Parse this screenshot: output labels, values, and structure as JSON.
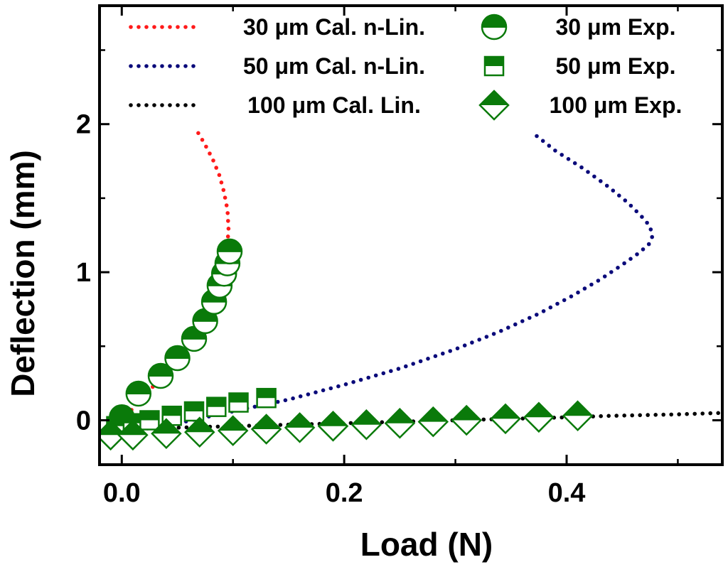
{
  "chart_data": {
    "type": "scatter",
    "xlabel": "Load (N)",
    "ylabel": "Deflection (mm)",
    "xlim": [
      -0.02,
      0.54
    ],
    "ylim": [
      -0.3,
      2.8
    ],
    "xticks": [
      0.0,
      0.2,
      0.4
    ],
    "xtick_labels": [
      "0.0",
      "0.2",
      "0.4"
    ],
    "yticks": [
      0,
      1,
      2
    ],
    "ytick_labels": [
      "0",
      "1",
      "2"
    ],
    "grid": false,
    "legend_position": "top",
    "colors": {
      "red": "#ff1a1a",
      "navy": "#0a0a7a",
      "black": "#000000",
      "green": "#0a7a0a"
    },
    "series": [
      {
        "name": "30 μm Cal. n-Lin.",
        "style": "dotted-line",
        "color": "#ff1a1a",
        "x": [
          -0.005,
          0.005,
          0.015,
          0.025,
          0.035,
          0.045,
          0.055,
          0.065,
          0.075,
          0.083,
          0.089,
          0.093,
          0.095,
          0.096,
          0.095,
          0.092,
          0.088,
          0.082,
          0.075,
          0.068
        ],
        "y": [
          -0.05,
          0.04,
          0.12,
          0.2,
          0.29,
          0.38,
          0.48,
          0.59,
          0.7,
          0.82,
          0.94,
          1.06,
          1.18,
          1.3,
          1.42,
          1.54,
          1.65,
          1.76,
          1.86,
          1.95
        ]
      },
      {
        "name": "50 μm Cal. n-Lin.",
        "style": "dotted-line",
        "color": "#0a0a7a",
        "x": [
          -0.005,
          0.05,
          0.1,
          0.15,
          0.2,
          0.25,
          0.3,
          0.34,
          0.375,
          0.405,
          0.43,
          0.45,
          0.465,
          0.474,
          0.477,
          0.475,
          0.467,
          0.455,
          0.437,
          0.415,
          0.39,
          0.368
        ],
        "y": [
          -0.07,
          -0.02,
          0.06,
          0.14,
          0.24,
          0.35,
          0.48,
          0.6,
          0.72,
          0.84,
          0.95,
          1.05,
          1.13,
          1.19,
          1.24,
          1.31,
          1.38,
          1.47,
          1.58,
          1.7,
          1.82,
          1.95
        ]
      },
      {
        "name": "100 μm Cal. Lin.",
        "style": "dotted-line",
        "color": "#000000",
        "x": [
          -0.005,
          0.1,
          0.2,
          0.3,
          0.4,
          0.44,
          0.5,
          0.54
        ],
        "y": [
          -0.06,
          -0.04,
          -0.02,
          0.0,
          0.02,
          0.03,
          0.04,
          0.05
        ]
      },
      {
        "name": "30 μm Exp.",
        "marker": "half-filled-circle",
        "color": "#0a7a0a",
        "x": [
          0.0,
          0.015,
          0.035,
          0.05,
          0.065,
          0.075,
          0.083,
          0.088,
          0.092,
          0.095,
          0.097
        ],
        "y": [
          0.02,
          0.18,
          0.3,
          0.42,
          0.55,
          0.67,
          0.8,
          0.91,
          0.99,
          1.06,
          1.14
        ]
      },
      {
        "name": "50 μm Exp.",
        "marker": "half-filled-square",
        "color": "#0a7a0a",
        "x": [
          -0.005,
          0.01,
          0.025,
          0.045,
          0.065,
          0.085,
          0.105,
          0.13
        ],
        "y": [
          -0.04,
          -0.02,
          0.0,
          0.03,
          0.06,
          0.09,
          0.12,
          0.15
        ]
      },
      {
        "name": "100 μm Exp.",
        "marker": "half-filled-diamond",
        "color": "#0a7a0a",
        "x": [
          -0.01,
          0.01,
          0.04,
          0.07,
          0.1,
          0.13,
          0.16,
          0.19,
          0.22,
          0.25,
          0.28,
          0.31,
          0.345,
          0.375,
          0.41
        ],
        "y": [
          -0.1,
          -0.1,
          -0.09,
          -0.08,
          -0.07,
          -0.06,
          -0.05,
          -0.04,
          -0.03,
          -0.02,
          -0.01,
          0.0,
          0.01,
          0.02,
          0.03
        ]
      }
    ]
  }
}
